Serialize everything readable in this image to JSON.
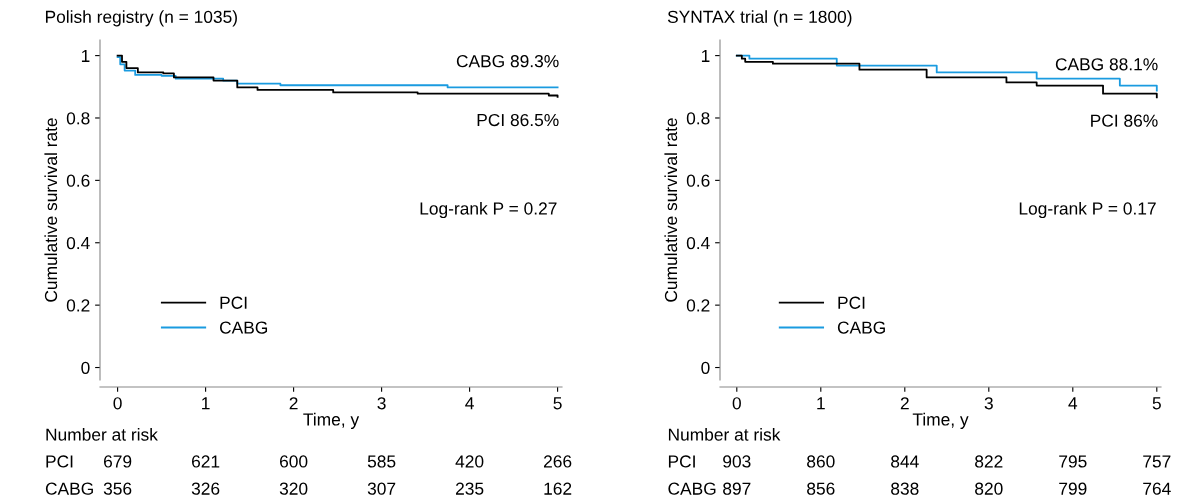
{
  "chart_data": [
    {
      "type": "step",
      "title": "Polish registry (n = 1035)",
      "xlabel": "Time, y",
      "ylabel": "Cumulative survival rate",
      "xlim": [
        -0.2,
        5.05
      ],
      "ylim": [
        -0.04,
        1.05
      ],
      "xticks": [
        0,
        1,
        2,
        3,
        4,
        5
      ],
      "yticks": [
        0,
        0.2,
        0.4,
        0.6,
        0.8,
        1
      ],
      "grid": false,
      "legend": "lower left",
      "series": [
        {
          "name": "PCI",
          "color": "#000000",
          "x": [
            0,
            0.05,
            0.1,
            0.23,
            0.52,
            0.64,
            1.09,
            1.36,
            1.59,
            2.45,
            3.41,
            4.9,
            5
          ],
          "values": [
            1,
            0.98,
            0.96,
            0.946,
            0.943,
            0.93,
            0.92,
            0.898,
            0.89,
            0.882,
            0.878,
            0.872,
            0.868
          ]
        },
        {
          "name": "CABG",
          "color": "#1a9be0",
          "x": [
            0,
            0.03,
            0.08,
            0.2,
            0.5,
            0.66,
            1.2,
            1.36,
            1.85,
            3.75,
            5
          ],
          "values": [
            0.995,
            0.972,
            0.952,
            0.938,
            0.935,
            0.926,
            0.92,
            0.91,
            0.905,
            0.898,
            0.898
          ]
        }
      ],
      "annotations": [
        "CABG 89.3%",
        "PCI 86.5%",
        "Log-rank P = 0.27",
        "Number at risk",
        "PCI",
        "679",
        "621",
        "600",
        "585",
        "420",
        "266",
        "CABG",
        "356",
        "326",
        "320",
        "307",
        "235",
        "162"
      ]
    },
    {
      "type": "step",
      "title": "SYNTAX trial (n = 1800)",
      "xlabel": "Time, y",
      "ylabel": "Cumulative survival rate",
      "xlim": [
        -0.2,
        5.05
      ],
      "ylim": [
        -0.04,
        1.05
      ],
      "xticks": [
        0,
        1,
        2,
        3,
        4,
        5
      ],
      "yticks": [
        0,
        0.2,
        0.4,
        0.6,
        0.8,
        1
      ],
      "grid": false,
      "legend": "lower left",
      "series": [
        {
          "name": "PCI",
          "color": "#000000",
          "x": [
            0,
            0.06,
            0.1,
            0.43,
            1.46,
            2.26,
            3.21,
            3.57,
            4.36,
            5
          ],
          "values": [
            1,
            0.99,
            0.98,
            0.974,
            0.955,
            0.93,
            0.914,
            0.904,
            0.878,
            0.866
          ]
        },
        {
          "name": "CABG",
          "color": "#1a9be0",
          "x": [
            0,
            0.15,
            1.19,
            2.38,
            3.57,
            4.56,
            5
          ],
          "values": [
            1,
            0.99,
            0.968,
            0.946,
            0.926,
            0.904,
            0.888
          ]
        }
      ],
      "annotations": [
        "CABG 88.1%",
        "PCI 86%",
        "Log-rank P = 0.17",
        "Number at risk",
        "PCI",
        "903",
        "860",
        "844",
        "822",
        "795",
        "757",
        "CABG",
        "897",
        "856",
        "838",
        "820",
        "799",
        "764"
      ]
    }
  ]
}
